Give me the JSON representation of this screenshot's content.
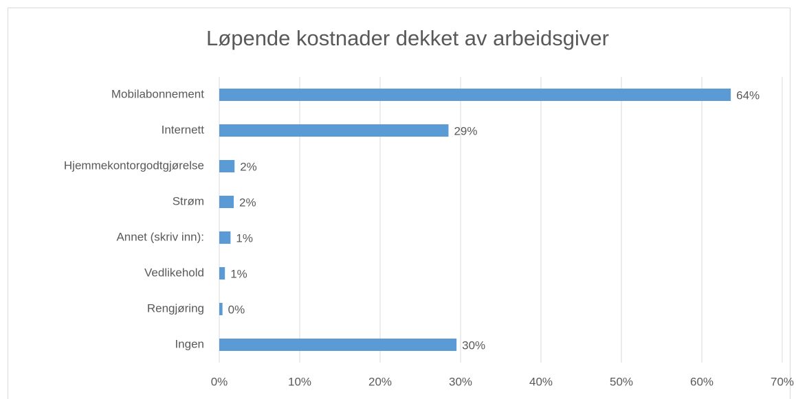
{
  "chart_data": {
    "type": "hbar",
    "title": "Løpende kostnader dekket av arbeidsgiver",
    "categories": [
      "Mobilabonnement",
      "Internett",
      "Hjemmekontorgodtgjørelse",
      "Strøm",
      "Annet (skriv inn):",
      "Vedlikehold",
      "Rengjøring",
      "Ingen"
    ],
    "values": [
      63.6,
      28.5,
      1.9,
      1.8,
      1.4,
      0.7,
      0.4,
      29.5
    ],
    "value_labels": [
      "64%",
      "29%",
      "2%",
      "2%",
      "1%",
      "1%",
      "0%",
      "30%"
    ],
    "color": "#5b9bd5",
    "xlim": [
      0,
      70
    ],
    "xticks": [
      {
        "value": 0,
        "label": "0%"
      },
      {
        "value": 10,
        "label": "10%"
      },
      {
        "value": 20,
        "label": "20%"
      },
      {
        "value": 30,
        "label": "30%"
      },
      {
        "value": 40,
        "label": "40%"
      },
      {
        "value": 50,
        "label": "50%"
      },
      {
        "value": 60,
        "label": "60%"
      },
      {
        "value": 70,
        "label": "70%"
      }
    ],
    "grid": true
  }
}
